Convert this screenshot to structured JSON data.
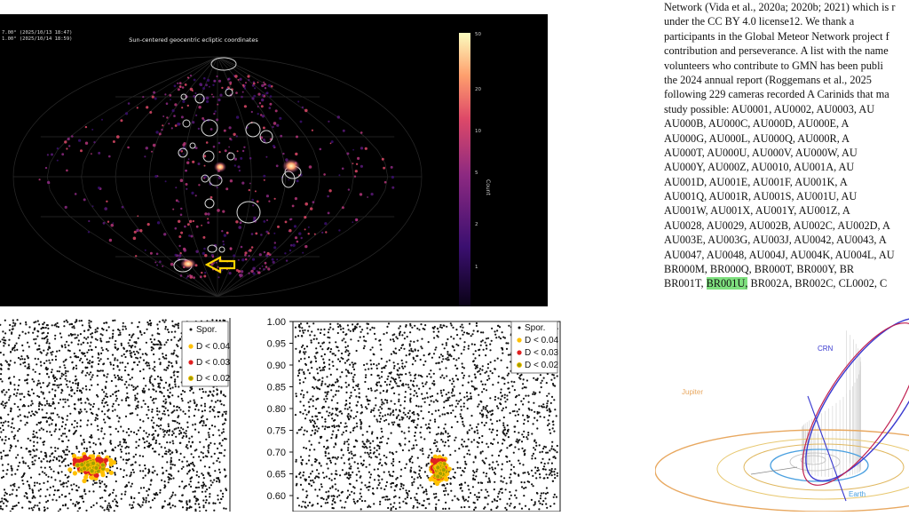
{
  "sky_map": {
    "timestamps": [
      "7.00° (2025/10/13 18:47)",
      "1.00° (2025/10/14 18:59)"
    ],
    "title": "Sun-centered geocentric ecliptic coordinates",
    "colorbar_label": "Count",
    "colorbar_ticks": [
      "50",
      "20",
      "10",
      "5",
      "2",
      "1"
    ],
    "colors": {
      "background": "#000000",
      "arrow": "#ffd400"
    }
  },
  "plot_left": {
    "legend": [
      "Spor.",
      "D < 0.04",
      "D < 0.03",
      "D < 0.02"
    ]
  },
  "plot_right": {
    "legend": [
      "Spor.",
      "D < 0.04",
      "D < 0.03",
      "D < 0.02"
    ],
    "y_ticks": [
      "1.00",
      "0.95",
      "0.90",
      "0.85",
      "0.80",
      "0.75",
      "0.70",
      "0.65",
      "0.60"
    ]
  },
  "legend_colors": {
    "spor": "#111111",
    "d004": "#ffc000",
    "d003": "#e02020",
    "d002": "#a0a000"
  },
  "paper_text": {
    "lines": [
      "Network (Vida et al., 2020a; 2020b; 2021) which is r",
      "under the CC BY 4.0 license12. We thank a",
      "participants in the Global Meteor Network project f",
      "contribution and perseverance. A list with the name",
      "volunteers who contribute to GMN has been publi",
      "the 2024 annual report (Roggemans et al., 2025",
      "following 229 cameras recorded A Carinids that ma",
      "study possible: AU0001, AU0002, AU0003, AU",
      "AU000B, AU000C, AU000D, AU000E, A",
      "AU000G, AU000L, AU000Q, AU000R, A",
      "AU000T, AU000U, AU000V, AU000W, AU",
      "AU000Y, AU000Z, AU0010, AU001A, AU",
      "AU001D, AU001E, AU001F, AU001K, A",
      "AU001Q, AU001R, AU001S, AU001U, AU",
      "AU001W, AU001X, AU001Y, AU001Z, A",
      "AU0028, AU0029, AU002B, AU002C, AU002D, A",
      "AU003E, AU003G, AU003J, AU0042, AU0043, A",
      "AU0047, AU0048, AU004J, AU004K, AU004L, AU",
      "BR000M, BR000Q, BR000T, BR000Y, BR"
    ],
    "last_line_before": "BR001T, ",
    "last_line_highlight": "BR001U,",
    "last_line_after": " BR002A, BR002C, CL0002, C"
  },
  "orbit_diagram": {
    "labels": {
      "crn": "CRN",
      "jupiter": "Jupiter",
      "earth": "Earth"
    },
    "colors": {
      "crn": "#3a3ad0",
      "jupiter": "#e8a860",
      "earth": "#4aa0e0",
      "drop_lines": "#c8c8c8"
    }
  }
}
